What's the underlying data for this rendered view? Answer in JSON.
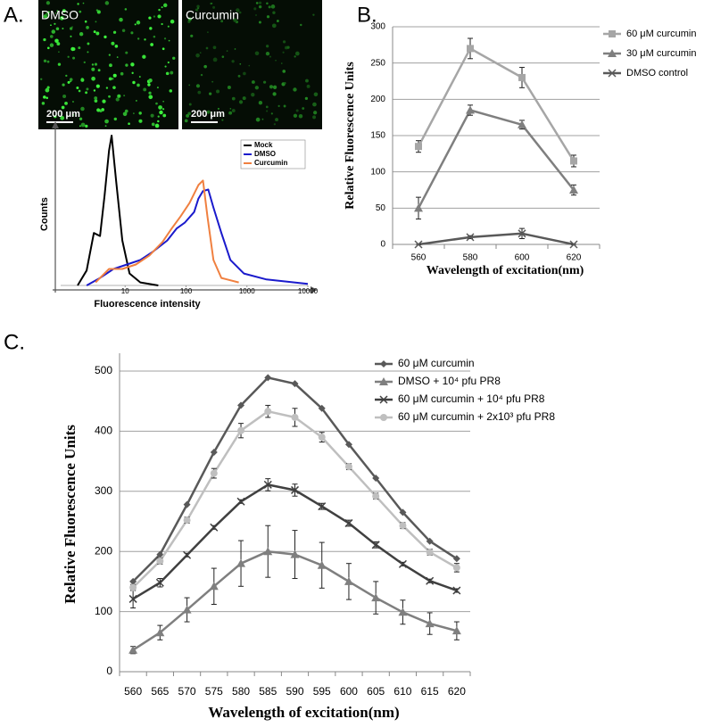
{
  "panel_labels": [
    "A.",
    "B.",
    "C."
  ],
  "images": [
    {
      "label": "DMSO",
      "scale_bar": "200 μm"
    },
    {
      "label": "Curcumin",
      "scale_bar": "200 μm"
    }
  ],
  "chart_data": [
    {
      "type": "line",
      "xlabel": "Fluorescence intensity",
      "ylabel": "Counts",
      "xscale": "log",
      "xlim": [
        1,
        10000
      ],
      "xticks": [
        10,
        100,
        1000,
        10000
      ],
      "ylim": [
        0,
        100
      ],
      "legend": "upper right",
      "series": [
        {
          "name": "Mock",
          "color": "#000000",
          "x": [
            1.66,
            2.33,
            3.06,
            3.87,
            4.59,
            5.43,
            6.0,
            7.1,
            9.0,
            11.8,
            17.8,
            35
          ],
          "values": [
            0,
            10,
            35,
            33,
            60,
            90,
            100,
            70,
            30,
            8,
            2,
            0
          ]
        },
        {
          "name": "DMSO",
          "color": "#1a1acc",
          "x": [
            2.33,
            3.87,
            6.43,
            10.7,
            17.8,
            29.6,
            49,
            70,
            96,
            136,
            160,
            190,
            232,
            282,
            380,
            535,
            890,
            2100,
            10000
          ],
          "values": [
            0,
            5,
            11,
            14,
            17,
            23,
            30,
            38,
            42,
            49,
            58,
            63,
            64,
            52,
            35,
            17,
            8,
            4,
            1
          ]
        },
        {
          "name": "Curcumin",
          "color": "#f08040",
          "x": [
            3.27,
            5.43,
            9.0,
            15,
            25,
            41,
            58,
            81,
            114,
            160,
            190,
            225,
            282,
            380,
            735
          ],
          "values": [
            2,
            11,
            11,
            14,
            20,
            29,
            38,
            46,
            55,
            67,
            70,
            46,
            17,
            5,
            2
          ]
        }
      ]
    },
    {
      "type": "line",
      "xlabel": "Wavelength of excitation(nm)",
      "ylabel": "Relative Fluorescence Units",
      "categories": [
        "560",
        "580",
        "600",
        "620"
      ],
      "ylim": [
        0,
        300
      ],
      "yticks": [
        0,
        50,
        100,
        150,
        200,
        250,
        300
      ],
      "grid": true,
      "legend": "right",
      "series": [
        {
          "name": "60 μM curcumin",
          "color": "#a6a6a6",
          "marker": "square",
          "values": [
            135,
            270,
            230,
            115
          ],
          "errors": [
            8,
            14,
            14,
            8
          ]
        },
        {
          "name": "30 μM curcumin",
          "color": "#7f7f7f",
          "marker": "triangle",
          "values": [
            50,
            185,
            165,
            75
          ],
          "errors": [
            15,
            7,
            6,
            7
          ]
        },
        {
          "name": "DMSO control",
          "color": "#595959",
          "marker": "x",
          "values": [
            0,
            10,
            15,
            0
          ],
          "errors": [
            0,
            2,
            7,
            0
          ]
        }
      ]
    },
    {
      "type": "line",
      "xlabel": "Wavelength of excitation(nm)",
      "ylabel": "Relative Fluorescence Units",
      "categories": [
        "560",
        "565",
        "570",
        "575",
        "580",
        "585",
        "590",
        "595",
        "600",
        "605",
        "610",
        "615",
        "620"
      ],
      "ylim": [
        0,
        500
      ],
      "yticks": [
        0,
        100,
        200,
        300,
        400,
        500
      ],
      "grid": true,
      "legend": "right",
      "series": [
        {
          "name": "60 μM curcumin",
          "color": "#595959",
          "marker": "diamond",
          "values": [
            150,
            195,
            278,
            365,
            443,
            489,
            479,
            438,
            378,
            322,
            265,
            217,
            188
          ]
        },
        {
          "name": "DMSO + 10⁴ pfu PR8",
          "color": "#7f7f7f",
          "marker": "triangle",
          "values": [
            36,
            65,
            103,
            142,
            180,
            200,
            195,
            177,
            150,
            123,
            99,
            80,
            68
          ],
          "errors": [
            6,
            12,
            20,
            30,
            38,
            43,
            40,
            38,
            30,
            27,
            20,
            18,
            15
          ]
        },
        {
          "name": "60 μM curcumin + 10⁴ pfu PR8",
          "color": "#404040",
          "marker": "x",
          "values": [
            121,
            148,
            194,
            240,
            283,
            311,
            302,
            275,
            247,
            211,
            179,
            151,
            135
          ],
          "errors": [
            15,
            7,
            3,
            3,
            3,
            10,
            10,
            5,
            5,
            5,
            3,
            3,
            3
          ]
        },
        {
          "name": "60 μM curcumin + 2x10³ pfu PR8",
          "color": "#bfbfbf",
          "marker": "circle",
          "values": [
            140,
            184,
            252,
            330,
            401,
            433,
            423,
            390,
            341,
            292,
            243,
            199,
            173
          ],
          "errors": [
            5,
            5,
            5,
            8,
            12,
            10,
            15,
            8,
            5,
            5,
            5,
            5,
            7
          ]
        }
      ]
    }
  ]
}
